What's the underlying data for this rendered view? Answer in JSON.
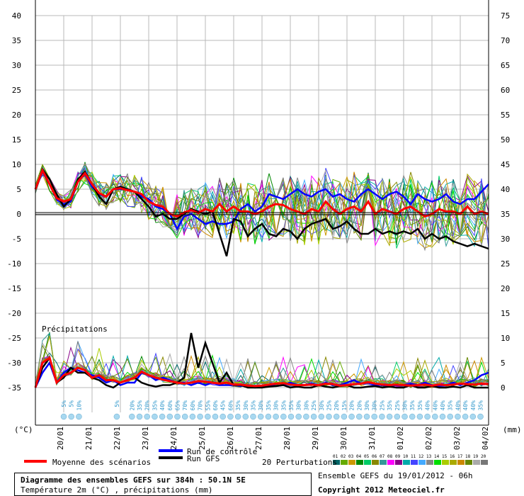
{
  "chart_data": {
    "type": "line",
    "title": "Diagramme des ensembles GEFS sur 384h : 50.1N 5E",
    "subtitle": "Température 2m (°C) , précipitations (mm)",
    "y_left_ticks": [
      "40",
      "35",
      "30",
      "25",
      "20",
      "15",
      "10",
      "5",
      "0",
      "-5",
      "-10",
      "-15",
      "-20",
      "-25",
      "-30",
      "-35"
    ],
    "y_right_ticks": [
      "75",
      "70",
      "65",
      "60",
      "55",
      "50",
      "45",
      "40",
      "35",
      "30",
      "25",
      "20",
      "15",
      "10",
      "5",
      "0"
    ],
    "y_left_unit": "(°C)",
    "y_right_unit": "(mm)",
    "ylim_temperature": [
      -35,
      40
    ],
    "ylim_precip": [
      0,
      75
    ],
    "x_ticks": [
      "20/01",
      "21/01",
      "22/01",
      "23/01",
      "24/01",
      "25/01",
      "26/01",
      "27/01",
      "28/01",
      "29/01",
      "30/01",
      "31/01",
      "01/02",
      "02/02",
      "03/02",
      "04/02"
    ],
    "precip_label": "Précipitations",
    "snow_percent_labels": [
      "5%",
      "5%",
      "10%",
      "",
      "",
      "",
      "",
      "5%",
      "",
      "20%",
      "35%",
      "20%",
      "35%",
      "40%",
      "60%",
      "65%",
      "70%",
      "60%",
      "70%",
      "55%",
      "60%",
      "45%",
      "60%",
      "35%",
      "30%",
      "35%",
      "30%",
      "35%",
      "30%",
      "35%",
      "35%",
      "30%",
      "30%",
      "25%",
      "30%",
      "25%",
      "20%",
      "15%",
      "20%",
      "20%",
      "30%",
      "30%",
      "25%",
      "35%",
      "25%",
      "30%",
      "35%",
      "35%",
      "40%",
      "40%",
      "40%",
      "35%",
      "40%",
      "40%",
      "40%",
      "35%"
    ],
    "times_days": [
      0,
      0.25,
      0.5,
      0.75,
      1,
      1.25,
      1.5,
      1.75,
      2,
      2.25,
      2.5,
      2.75,
      3,
      3.25,
      3.5,
      3.75,
      4,
      4.25,
      4.5,
      4.75,
      5,
      5.25,
      5.5,
      5.75,
      6,
      6.25,
      6.5,
      6.75,
      7,
      7.25,
      7.5,
      7.75,
      8,
      8.25,
      8.5,
      8.75,
      9,
      9.25,
      9.5,
      9.75,
      10,
      10.25,
      10.5,
      10.75,
      11,
      11.25,
      11.5,
      11.75,
      12,
      12.25,
      12.5,
      12.75,
      13,
      13.25,
      13.5,
      13.75,
      14,
      14.25,
      14.5,
      14.75,
      15,
      15.25,
      15.5,
      15.75,
      16
    ],
    "series": [
      {
        "name": "Moyenne des scénarios",
        "color": "#ff0000",
        "temperature": [
          5,
          8.8,
          6,
          3.2,
          2.5,
          3,
          6.5,
          8.2,
          6,
          4.2,
          3.5,
          5,
          5.2,
          4.8,
          4.5,
          4,
          2.5,
          1.8,
          1.5,
          0,
          -0.5,
          0.3,
          0.8,
          0.2,
          1,
          0.5,
          2,
          0.5,
          1.5,
          0.5,
          0.5,
          0,
          0.5,
          1.5,
          2,
          1.8,
          1,
          0.5,
          0,
          1,
          0.5,
          2.5,
          1,
          0,
          1,
          1.5,
          0.5,
          2.5,
          0,
          1,
          0.5,
          0,
          1,
          1.5,
          0.5,
          -0.5,
          0,
          1,
          0.5,
          0.5,
          0,
          1.5,
          0,
          0.5,
          0
        ],
        "precip": [
          0,
          5,
          6,
          1,
          2.5,
          3,
          4,
          3.5,
          2,
          2.5,
          1.5,
          1.5,
          1,
          1.5,
          2,
          3.2,
          2.5,
          2,
          1.6,
          1.3,
          1,
          0.8,
          1,
          1.3,
          1.2,
          1,
          0.8,
          1,
          0.6,
          0.6,
          0.4,
          0.3,
          0.4,
          0.6,
          0.8,
          0.9,
          0.6,
          0.5,
          0.5,
          0.6,
          0.5,
          0.8,
          0.7,
          0.4,
          0.5,
          0.7,
          0.8,
          1.1,
          0.8,
          0.6,
          0.5,
          0.6,
          0.5,
          0.4,
          0.5,
          0.6,
          0.4,
          0.6,
          0.5,
          0.6,
          0.8,
          0.7,
          0.6,
          0.8,
          0.7
        ]
      },
      {
        "name": "Run GFS",
        "color": "#000000",
        "temperature": [
          5,
          9,
          7,
          4,
          1.5,
          3,
          7,
          8.5,
          6,
          3.5,
          2,
          5,
          5.5,
          5,
          4.5,
          3,
          1.5,
          -0.5,
          0,
          -1,
          -1,
          0,
          1,
          0.5,
          0,
          0.5,
          -4,
          -8.5,
          -1,
          -1.5,
          -4.5,
          -3,
          -2,
          -4,
          -4.5,
          -3,
          -3.5,
          -5,
          -3,
          -2,
          -1.5,
          -1,
          -3,
          -2.5,
          -1.5,
          -3,
          -4,
          -4,
          -3,
          -4,
          -3.5,
          -4,
          -3.5,
          -4,
          -3,
          -5,
          -4,
          -5,
          -4.5,
          -5.5,
          -6,
          -6.5,
          -6,
          -6.5,
          -7
        ],
        "precip": [
          0,
          4,
          6,
          1,
          2,
          4,
          3,
          3,
          2,
          1.5,
          0.5,
          0,
          1,
          1.5,
          2,
          1,
          0.5,
          0.2,
          0.5,
          0.5,
          1,
          2,
          11,
          4,
          9,
          5,
          1,
          3,
          0.5,
          0.5,
          0,
          0,
          0,
          0.2,
          0.3,
          0.5,
          0,
          0.2,
          0,
          0,
          0.5,
          0.2,
          0,
          0.3,
          0.5,
          0,
          0,
          0.2,
          0.3,
          0,
          0.2,
          0,
          0,
          0.5,
          0,
          0,
          0.3,
          0,
          0,
          0.2,
          0,
          0.5,
          0,
          0,
          0
        ]
      },
      {
        "name": "Run de contrôle",
        "color": "#0000ff",
        "temperature": [
          5,
          8.5,
          6,
          3,
          2,
          2.5,
          6.5,
          8,
          5.5,
          4,
          3.5,
          5,
          5,
          5,
          4.5,
          3.5,
          3,
          1.5,
          1,
          0,
          -3,
          -0.5,
          0,
          -1,
          -2,
          -1.5,
          -2,
          -2,
          -1.5,
          1,
          2,
          0.5,
          1.5,
          4,
          3.5,
          3,
          4,
          5,
          4,
          3.5,
          4.5,
          5,
          3.5,
          4,
          3,
          2.5,
          4,
          5,
          4,
          3,
          4,
          4.5,
          3.5,
          2,
          4,
          3,
          2.5,
          3,
          4,
          2.5,
          2,
          3,
          3,
          4.5,
          6
        ],
        "precip": [
          0,
          3,
          5,
          1,
          3,
          4,
          3.5,
          3,
          2.5,
          2,
          1,
          1.5,
          0.5,
          1,
          1,
          3,
          2.5,
          1.5,
          2,
          1.5,
          1,
          1,
          0.5,
          1,
          0.5,
          1,
          0.5,
          0.5,
          0.5,
          0.3,
          0.5,
          0,
          0.2,
          0.5,
          0.3,
          0.5,
          1,
          0.5,
          0.5,
          0.8,
          0.5,
          1,
          0.5,
          0.5,
          1,
          1.5,
          0.8,
          1,
          0.5,
          0.5,
          0.3,
          0.5,
          0.5,
          0.8,
          0.5,
          1,
          0.5,
          0.3,
          0.5,
          1,
          0.5,
          1,
          1.5,
          2.5,
          3
        ]
      }
    ],
    "perturbation_colors": [
      "#006666",
      "#66aa00",
      "#cc9900",
      "#008800",
      "#00cc66",
      "#888800",
      "#339999",
      "#ff00ff",
      "#880088",
      "#00aaaa",
      "#4444ff",
      "#44aaff",
      "#888888",
      "#00dd00",
      "#aacc00",
      "#aaaa00",
      "#cc8800",
      "#668800",
      "#aaaaaa",
      "#777777"
    ],
    "perturbation_ids": [
      "01",
      "02",
      "03",
      "04",
      "05",
      "06",
      "07",
      "08",
      "09",
      "10",
      "11",
      "12",
      "13",
      "14",
      "15",
      "16",
      "17",
      "18",
      "19",
      "20"
    ]
  },
  "legend": {
    "mean_label": "Moyenne des scénarios",
    "control_label": "Run de contrôle",
    "gfs_label": "Run GFS",
    "perturbations_label": "20 Perturbations"
  },
  "footer": {
    "title": "Diagramme des ensembles GEFS sur 384h : 50.1N 5E",
    "subtitle": "Température 2m (°C) , précipitations (mm)",
    "run_info": "Ensemble GEFS du 19/01/2012 - 06h",
    "copyright": "Copyright 2012 Meteociel.fr"
  }
}
